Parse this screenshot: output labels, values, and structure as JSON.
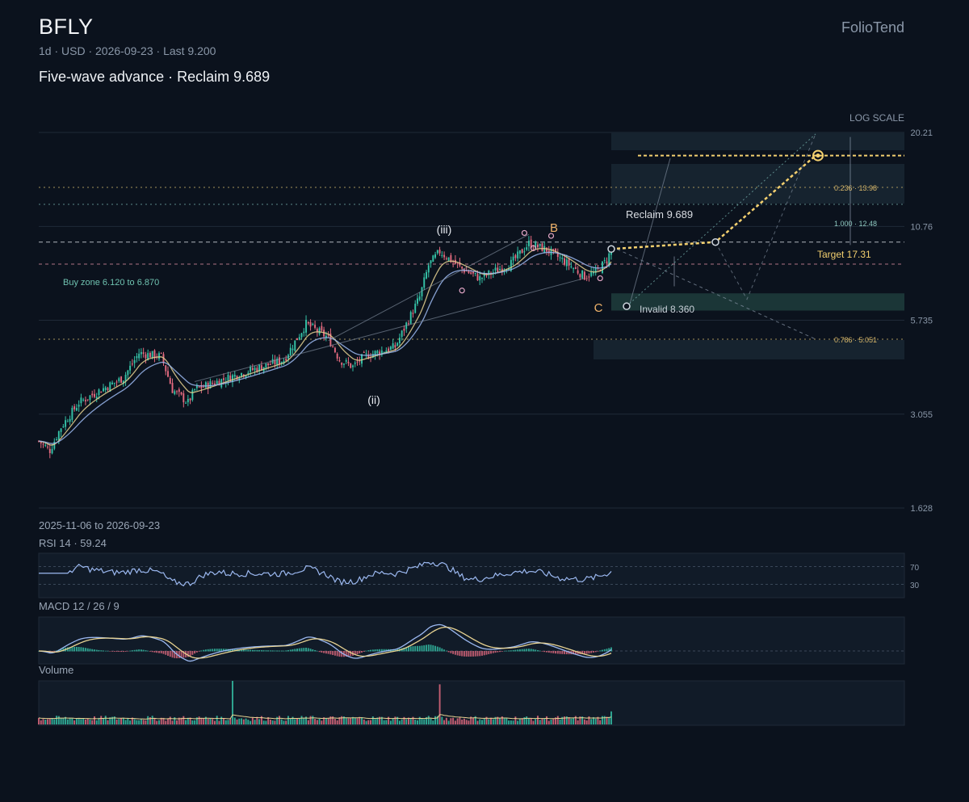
{
  "header": {
    "symbol": "BFLY",
    "meta": "1d · USD · 2026-09-23 · Last 9.200",
    "subtitle": "Five-wave advance · Reclaim 9.689",
    "brand": "FolioTend"
  },
  "colors": {
    "background": "#0b121d",
    "up": "#35c2a7",
    "down": "#e36a7f",
    "ema_fast": "#e8d392",
    "ema_slow": "#9bb8f0",
    "accent": "#f4d06f"
  },
  "chart_data": {
    "type": "candlestick",
    "scale": "log",
    "scale_label": "LOG SCALE",
    "date_range": "2025-11-06 to 2026-09-23",
    "y_ticks": [
      "20.21",
      "10.76",
      "5.735",
      "3.055",
      "1.628"
    ],
    "y_tick_values": [
      20.21,
      10.76,
      5.735,
      3.055,
      1.628
    ],
    "last": 9.2,
    "close_path": [
      [
        0,
        2.55
      ],
      [
        5,
        2.4
      ],
      [
        10,
        2.8
      ],
      [
        18,
        3.3
      ],
      [
        28,
        3.6
      ],
      [
        38,
        3.9
      ],
      [
        45,
        4.6
      ],
      [
        55,
        4.5
      ],
      [
        60,
        3.6
      ],
      [
        67,
        3.3
      ],
      [
        70,
        3.6
      ],
      [
        80,
        3.8
      ],
      [
        95,
        4.1
      ],
      [
        110,
        4.4
      ],
      [
        120,
        5.6
      ],
      [
        130,
        5.1
      ],
      [
        135,
        4.4
      ],
      [
        141,
        4.2
      ],
      [
        146,
        4.5
      ],
      [
        160,
        4.8
      ],
      [
        171,
        6.7
      ],
      [
        175,
        8.3
      ],
      [
        180,
        9.1
      ],
      [
        190,
        8.1
      ],
      [
        198,
        7.6
      ],
      [
        212,
        8.4
      ],
      [
        220,
        9.6
      ],
      [
        228,
        9.2
      ],
      [
        235,
        8.6
      ],
      [
        245,
        7.7
      ],
      [
        250,
        7.9
      ],
      [
        255,
        8.6
      ],
      [
        257,
        9.2
      ]
    ],
    "bars": 258,
    "annotations": {
      "wave_labels": [
        "(iii)",
        "(ii)",
        "B",
        "C"
      ],
      "reclaim": "Reclaim 9.689",
      "invalid": "Invalid 8.360",
      "target": "Target 17.31",
      "buy_zone": "Buy zone 6.120 to 6.870",
      "fib_0236": "0.236 · 13.98",
      "fib_1000": "1.000 · 12.48",
      "fib_0786": "0.786 · 5.051"
    },
    "levels": {
      "target": 17.31,
      "fib_0236": 13.98,
      "fib_1000": 12.48,
      "reclaim": 9.689,
      "invalid": 8.36,
      "fib_0786": 5.051,
      "buy_zone": [
        6.12,
        6.87
      ]
    }
  },
  "rsi": {
    "label": "RSI 14 · 59.24",
    "value": 59.24,
    "upper": "70",
    "lower": "30"
  },
  "macd": {
    "label": "MACD 12 / 26 / 9"
  },
  "volume": {
    "label": "Volume"
  }
}
